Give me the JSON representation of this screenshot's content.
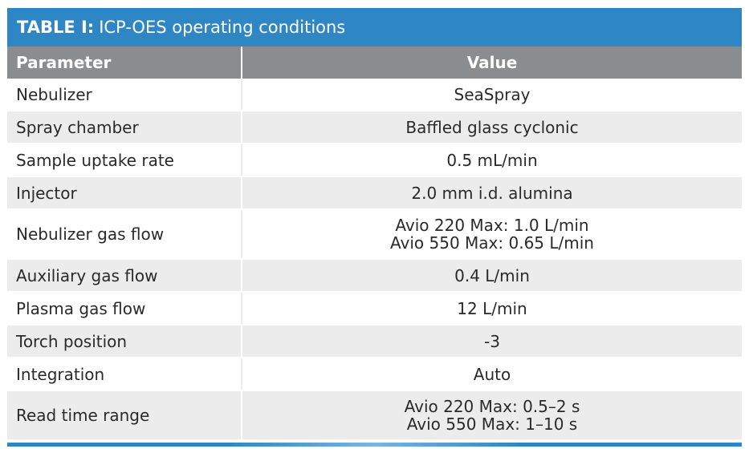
{
  "title": {
    "label": "TABLE I:",
    "text": "ICP-OES operating conditions"
  },
  "columns": {
    "parameter": "Parameter",
    "value": "Value"
  },
  "rows": [
    {
      "parameter": "Nebulizer",
      "values": [
        "SeaSpray"
      ]
    },
    {
      "parameter": "Spray chamber",
      "values": [
        "Baffled glass cyclonic"
      ]
    },
    {
      "parameter": "Sample uptake rate",
      "values": [
        "0.5 mL/min"
      ]
    },
    {
      "parameter": "Injector",
      "values": [
        "2.0 mm i.d. alumina"
      ]
    },
    {
      "parameter": "Nebulizer gas flow",
      "values": [
        "Avio 220 Max: 1.0 L/min",
        "Avio 550 Max: 0.65 L/min"
      ]
    },
    {
      "parameter": "Auxiliary gas flow",
      "values": [
        "0.4 L/min"
      ]
    },
    {
      "parameter": "Plasma gas flow",
      "values": [
        "12 L/min"
      ]
    },
    {
      "parameter": "Torch position",
      "values": [
        "-3"
      ]
    },
    {
      "parameter": "Integration",
      "values": [
        "Auto"
      ]
    },
    {
      "parameter": "Read time range",
      "values": [
        "Avio 220 Max: 0.5–2 s",
        "Avio 550 Max: 1–10 s"
      ]
    }
  ],
  "colors": {
    "accent": "#2f86c4",
    "header_gray": "#8a8d8f",
    "row_shade": "#ececec"
  }
}
